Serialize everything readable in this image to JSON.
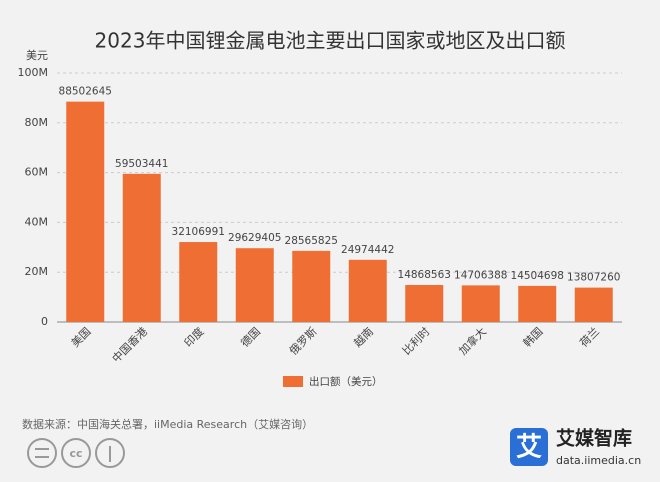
{
  "chart_data": {
    "type": "bar",
    "title": "2023年中国锂金属电池主要出口国家或地区及出口额",
    "y_label": "美元",
    "categories": [
      "美国",
      "中国香港",
      "印度",
      "德国",
      "俄罗斯",
      "越南",
      "比利时",
      "加拿大",
      "韩国",
      "荷兰"
    ],
    "series": [
      {
        "name": "出口额（美元）",
        "color": "#ee6e34",
        "values": [
          88502645,
          59503441,
          32106991,
          29629405,
          28565825,
          24974442,
          14868563,
          14706388,
          14504698,
          13807260
        ]
      }
    ],
    "ylim": [
      0,
      100000000
    ],
    "yticks": [
      0,
      {
        "value": 20000000,
        "label": "20M"
      },
      {
        "value": 40000000,
        "label": "40M"
      },
      {
        "value": 60000000,
        "label": "60M"
      },
      {
        "value": 80000000,
        "label": "80M"
      },
      {
        "value": 100000000,
        "label": "100M"
      }
    ],
    "grid": true,
    "source": "数据来源：中国海关总署，iiMedia Research（艾媒咨询）"
  },
  "logo": {
    "icon": "艾",
    "name": "艾媒智库",
    "url": "data.iimedia.cn"
  }
}
